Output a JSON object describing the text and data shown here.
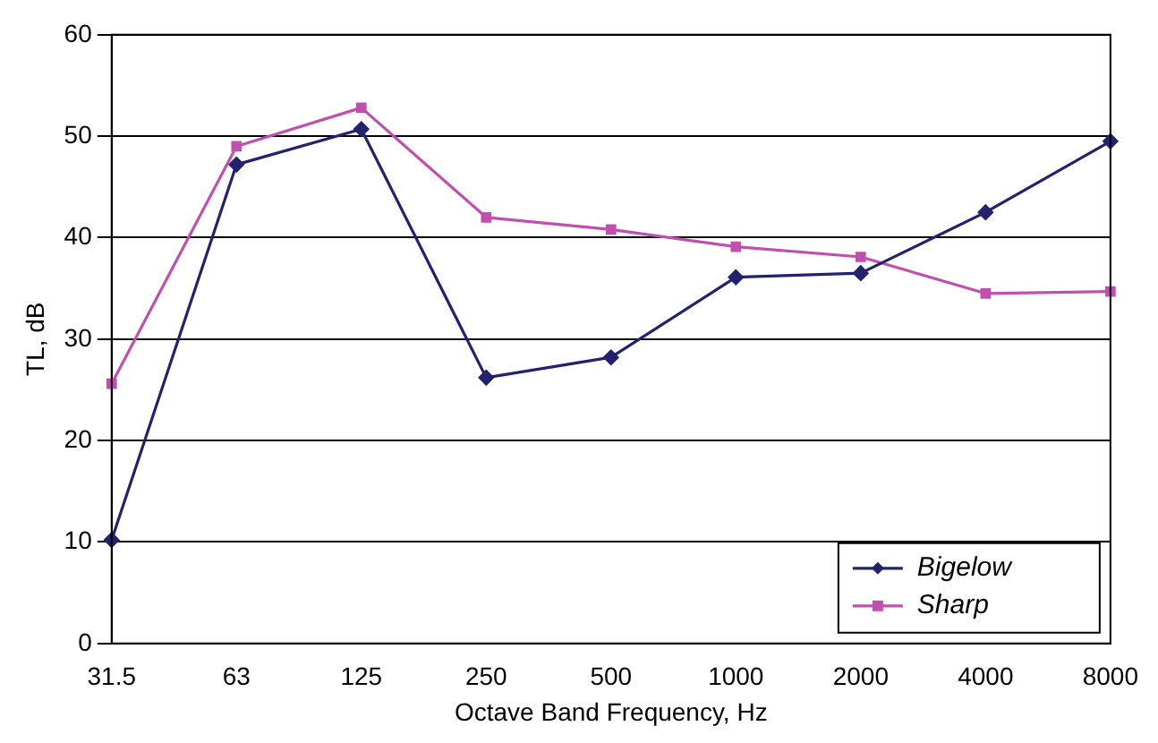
{
  "chart_data": {
    "type": "line",
    "xlabel": "Octave Band Frequency, Hz",
    "ylabel": "TL, dB",
    "categories": [
      "31.5",
      "63",
      "125",
      "250",
      "500",
      "1000",
      "2000",
      "4000",
      "8000"
    ],
    "series": [
      {
        "name": "Bigelow",
        "color": "#22226e",
        "marker": "diamond",
        "values": [
          10.2,
          47.2,
          50.7,
          26.2,
          28.2,
          36.1,
          36.5,
          42.5,
          49.5
        ]
      },
      {
        "name": "Sharp",
        "color": "#c04fb0",
        "marker": "square",
        "values": [
          25.6,
          49,
          52.8,
          42,
          40.8,
          39.1,
          38.1,
          34.5,
          34.7
        ]
      }
    ],
    "ylim": [
      0,
      60
    ],
    "yticks": [
      0,
      10,
      20,
      30,
      40,
      50,
      60
    ],
    "grid": "y",
    "legend": "bottom right",
    "line_style": "solid"
  }
}
